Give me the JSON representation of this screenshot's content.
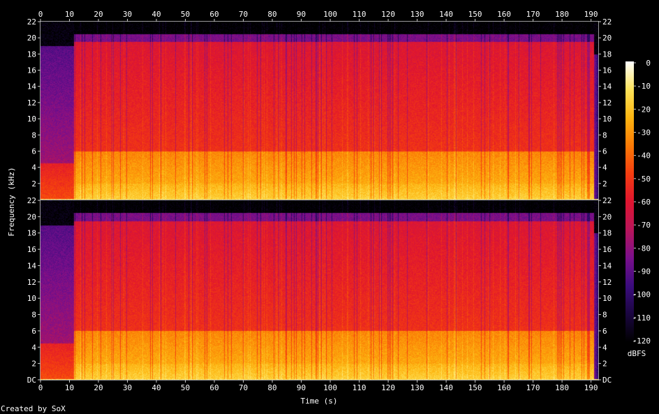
{
  "chart_data": {
    "type": "heatmap",
    "title": "",
    "xlabel": "Time (s)",
    "ylabel": "Frequency (kHz)",
    "credit": "Created by SoX",
    "x_range": [
      0,
      192.5
    ],
    "y_range_khz": [
      0,
      22
    ],
    "x_ticks": [
      0,
      10,
      20,
      30,
      40,
      50,
      60,
      70,
      80,
      90,
      100,
      110,
      120,
      130,
      140,
      150,
      160,
      170,
      180,
      190
    ],
    "y_ticks_upper": [
      "2",
      "4",
      "6",
      "8",
      "10",
      "12",
      "14",
      "16",
      "18",
      "20",
      "22"
    ],
    "y_ticks_lower": [
      "DC",
      "2",
      "4",
      "6",
      "8",
      "10",
      "12",
      "14",
      "16",
      "18",
      "20",
      "22"
    ],
    "channels": 2,
    "colorbar": {
      "label": "dBFS",
      "ticks": [
        "0",
        "-10",
        "-20",
        "-30",
        "-40",
        "-50",
        "-60",
        "-70",
        "-80",
        "-90",
        "-100",
        "-110",
        "-120"
      ],
      "range": [
        -120,
        0
      ],
      "colors": [
        "#000000",
        "#1a0640",
        "#3b0c7e",
        "#7a0f8c",
        "#b8155a",
        "#e0152f",
        "#f43d10",
        "#fb7a05",
        "#fdb510",
        "#fde35a",
        "#ffffff"
      ]
    },
    "segments": [
      {
        "start": 0,
        "end": 11.5,
        "level": "quieter intro, content mostly below 4.5 kHz, faint upper band up to ~19 kHz"
      },
      {
        "start": 11.5,
        "end": 191,
        "level": "full-band music, energy up to ~20 kHz, strongest below 6 kHz"
      },
      {
        "start": 191,
        "end": 192.5,
        "level": "fade out"
      }
    ]
  }
}
